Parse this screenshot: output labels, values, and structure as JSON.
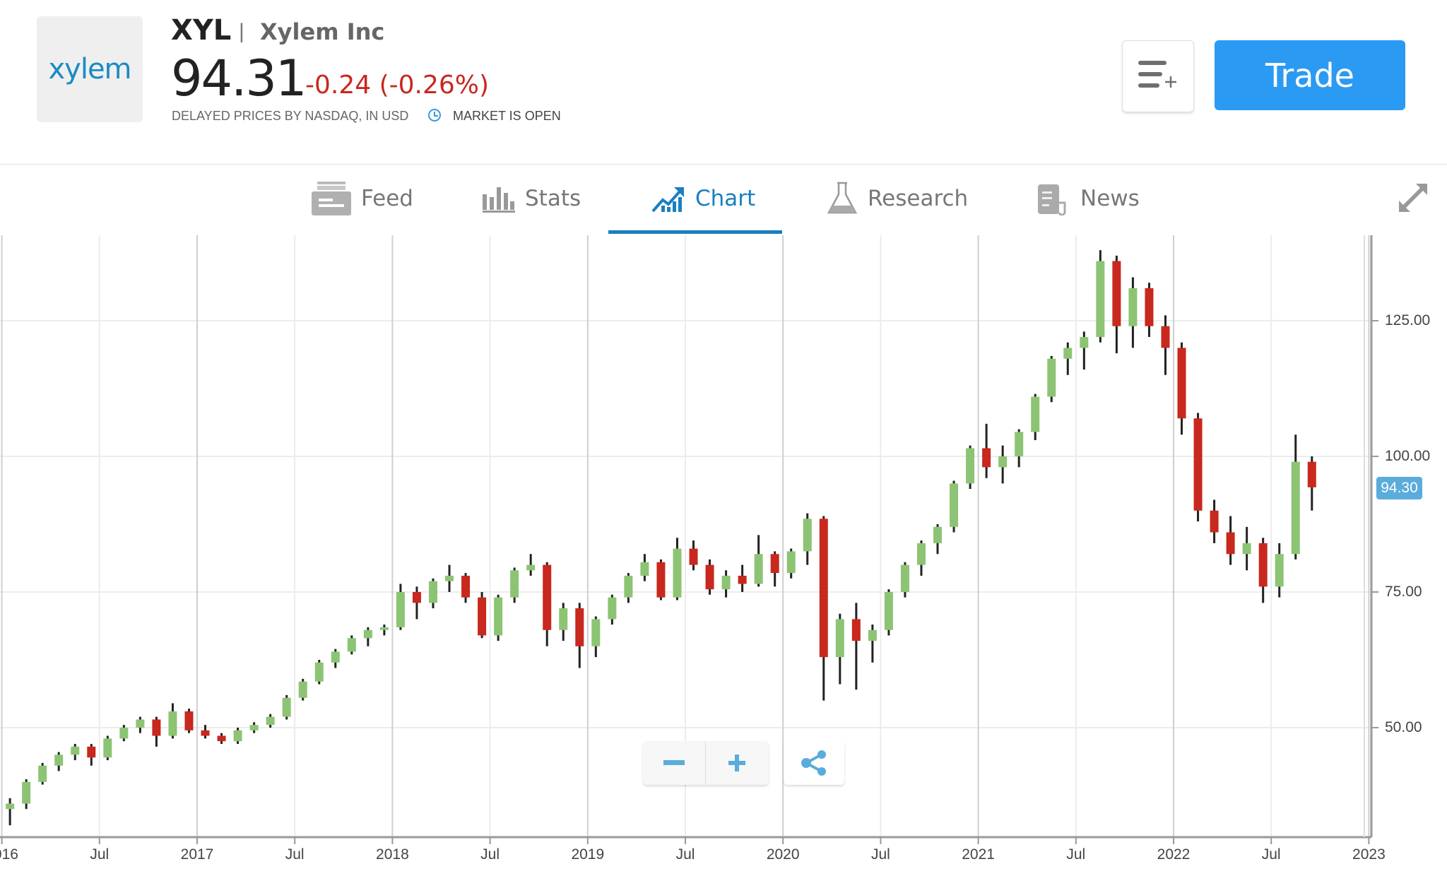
{
  "header": {
    "logo_text": "xylem",
    "ticker": "XYL",
    "separator": "|",
    "company_name": "Xylem Inc",
    "price": "94.31",
    "change": "-0.24 (-0.26%)",
    "delayed_note": "DELAYED PRICES BY NASDAQ, IN USD",
    "market_status": "MARKET IS OPEN",
    "trade_label": "Trade",
    "watchlist_icon": "list-add-icon"
  },
  "tabs": [
    {
      "label": "Feed",
      "icon": "feed-icon"
    },
    {
      "label": "Stats",
      "icon": "bar-chart-icon"
    },
    {
      "label": "Chart",
      "icon": "chart-trend-icon",
      "active": true
    },
    {
      "label": "Research",
      "icon": "flask-icon"
    },
    {
      "label": "News",
      "icon": "newspaper-icon"
    }
  ],
  "colors": {
    "accent": "#1a7fc0",
    "trade": "#2b9af3",
    "up": "#8cc474",
    "down": "#c8281e",
    "negative_text": "#c8281e",
    "price_tag": "#5aacdb"
  },
  "chart_data": {
    "type": "candlestick",
    "interval": "monthly (approximate)",
    "x_tick_labels": [
      "2016",
      "Jul",
      "2017",
      "Jul",
      "2018",
      "Jul",
      "2019",
      "Jul",
      "2020",
      "Jul",
      "2021",
      "Jul",
      "2022",
      "Jul",
      "2023"
    ],
    "y_tick_labels": [
      "125.00",
      "100.00",
      "75.00",
      "50.00"
    ],
    "ylim": [
      31,
      142
    ],
    "grid": true,
    "last_price_label": "94.30",
    "candles": [
      [
        "2016-01",
        35,
        37,
        32,
        36
      ],
      [
        "2016-02",
        36,
        40.5,
        35,
        40
      ],
      [
        "2016-03",
        40,
        43.5,
        39.5,
        43
      ],
      [
        "2016-04",
        43,
        45.5,
        42,
        45
      ],
      [
        "2016-05",
        45,
        47,
        44,
        46.5
      ],
      [
        "2016-06",
        46.5,
        47,
        43,
        44.5
      ],
      [
        "2016-07",
        44.5,
        48.5,
        44,
        48
      ],
      [
        "2016-08",
        48,
        50.5,
        47.5,
        50
      ],
      [
        "2016-09",
        50,
        52,
        49,
        51.5
      ],
      [
        "2016-10",
        51.5,
        52,
        46.5,
        48.5
      ],
      [
        "2016-11",
        48.5,
        54.5,
        48,
        53
      ],
      [
        "2016-12",
        53,
        53.5,
        49,
        49.5
      ],
      [
        "2017-01",
        49.5,
        50.5,
        48,
        48.5
      ],
      [
        "2017-02",
        48.5,
        49,
        47,
        47.5
      ],
      [
        "2017-03",
        47.5,
        50,
        47,
        49.5
      ],
      [
        "2017-04",
        49.5,
        51,
        49,
        50.5
      ],
      [
        "2017-05",
        50.5,
        52.5,
        50,
        52
      ],
      [
        "2017-06",
        52,
        56,
        51.5,
        55.5
      ],
      [
        "2017-07",
        55.5,
        59,
        55,
        58.5
      ],
      [
        "2017-08",
        58.5,
        62.5,
        58,
        62
      ],
      [
        "2017-09",
        62,
        64.5,
        61,
        64
      ],
      [
        "2017-10",
        64,
        67,
        63.5,
        66.5
      ],
      [
        "2017-11",
        66.5,
        68.5,
        65,
        68
      ],
      [
        "2017-12",
        68,
        69,
        67,
        68.5
      ],
      [
        "2018-01",
        68.5,
        76.5,
        68,
        75
      ],
      [
        "2018-02",
        75,
        76,
        70,
        73
      ],
      [
        "2018-03",
        73,
        77.5,
        72,
        77
      ],
      [
        "2018-04",
        77,
        80,
        75,
        78
      ],
      [
        "2018-05",
        78,
        78.5,
        73,
        74
      ],
      [
        "2018-06",
        74,
        75,
        66.5,
        67
      ],
      [
        "2018-07",
        67,
        74.5,
        66,
        74
      ],
      [
        "2018-08",
        74,
        79.5,
        73,
        79
      ],
      [
        "2018-09",
        79,
        82,
        78,
        80
      ],
      [
        "2018-10",
        80,
        80.5,
        65,
        68
      ],
      [
        "2018-11",
        68,
        73,
        66,
        72
      ],
      [
        "2018-12",
        72,
        73,
        61,
        65
      ],
      [
        "2019-01",
        65,
        70.5,
        63,
        70
      ],
      [
        "2019-02",
        70,
        74.5,
        69,
        74
      ],
      [
        "2019-03",
        74,
        78.5,
        73,
        78
      ],
      [
        "2019-04",
        78,
        82,
        77,
        80.5
      ],
      [
        "2019-05",
        80.5,
        81,
        73.5,
        74
      ],
      [
        "2019-06",
        74,
        85,
        73.5,
        83
      ],
      [
        "2019-07",
        83,
        84.5,
        79,
        80
      ],
      [
        "2019-08",
        80,
        81,
        74.5,
        75.5
      ],
      [
        "2019-09",
        75.5,
        79,
        74,
        78
      ],
      [
        "2019-10",
        78,
        80,
        75,
        76.5
      ],
      [
        "2019-11",
        76.5,
        85.5,
        76,
        82
      ],
      [
        "2019-12",
        82,
        82.5,
        76,
        78.5
      ],
      [
        "2020-01",
        78.5,
        83,
        77.5,
        82.5
      ],
      [
        "2020-02",
        82.5,
        89.5,
        80,
        88.5
      ],
      [
        "2020-03",
        88.5,
        89,
        55,
        63
      ],
      [
        "2020-04",
        63,
        71,
        58,
        70
      ],
      [
        "2020-05",
        70,
        73,
        57,
        66
      ],
      [
        "2020-06",
        66,
        69,
        62,
        68
      ],
      [
        "2020-07",
        68,
        75.5,
        67,
        75
      ],
      [
        "2020-08",
        75,
        80.5,
        74,
        80
      ],
      [
        "2020-09",
        80,
        84.5,
        78,
        84
      ],
      [
        "2020-10",
        84,
        87.5,
        82,
        87
      ],
      [
        "2020-11",
        87,
        95.5,
        86,
        95
      ],
      [
        "2020-12",
        95,
        102,
        94,
        101.5
      ],
      [
        "2021-01",
        101.5,
        106,
        96,
        98
      ],
      [
        "2021-02",
        98,
        102,
        95,
        100
      ],
      [
        "2021-03",
        100,
        105,
        98,
        104.5
      ],
      [
        "2021-04",
        104.5,
        111.5,
        103,
        111
      ],
      [
        "2021-05",
        111,
        118.5,
        110,
        118
      ],
      [
        "2021-06",
        118,
        121,
        115,
        120
      ],
      [
        "2021-07",
        120,
        123,
        116,
        122
      ],
      [
        "2021-08",
        122,
        138,
        121,
        136
      ],
      [
        "2021-09",
        136,
        137,
        119,
        124
      ],
      [
        "2021-10",
        124,
        133,
        120,
        131
      ],
      [
        "2021-11",
        131,
        132,
        122,
        124
      ],
      [
        "2021-12",
        124,
        126,
        115,
        120
      ],
      [
        "2022-01",
        120,
        121,
        104,
        107
      ],
      [
        "2022-02",
        107,
        108,
        88,
        90
      ],
      [
        "2022-03",
        90,
        92,
        84,
        86
      ],
      [
        "2022-04",
        86,
        89,
        80,
        82
      ],
      [
        "2022-05",
        82,
        87,
        79,
        84
      ],
      [
        "2022-06",
        84,
        85,
        73,
        76
      ],
      [
        "2022-07",
        76,
        84,
        74,
        82
      ],
      [
        "2022-08",
        82,
        104,
        81,
        99
      ],
      [
        "2022-09",
        99,
        100,
        90,
        94.3
      ]
    ]
  },
  "controls": {
    "zoom_out_icon": "minus-icon",
    "zoom_in_icon": "plus-icon",
    "share_icon": "share-icon",
    "expand_icon": "expand-icon"
  }
}
